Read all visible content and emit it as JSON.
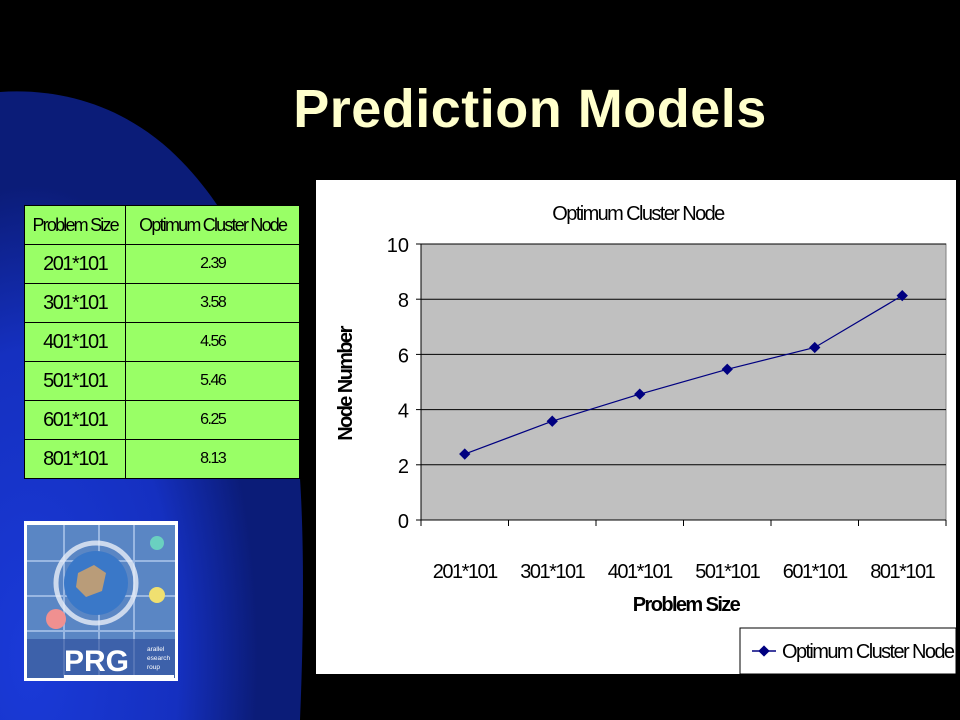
{
  "slide": {
    "title": "Prediction Models"
  },
  "table": {
    "headers": [
      "Problem Size",
      "Optimum Cluster Node"
    ],
    "rows": [
      [
        "201*101",
        "2.39"
      ],
      [
        "301*101",
        "3.58"
      ],
      [
        "401*101",
        "4.56"
      ],
      [
        "501*101",
        "5.46"
      ],
      [
        "601*101",
        "6.25"
      ],
      [
        "801*101",
        "8.13"
      ]
    ]
  },
  "logo": {
    "text": "PRG",
    "subtext": [
      "arallel",
      "esearch",
      "roup"
    ]
  },
  "colors": {
    "background": "#000000",
    "accent_blue": "#1133cc",
    "title": "#ffffcc",
    "table_fill": "#99ff66",
    "plot_area": "#c0c0c0",
    "series": "#000080"
  },
  "chart_data": {
    "type": "line",
    "title": "Optimum Cluster Node",
    "xlabel": "Problem Size",
    "ylabel": "Node Number",
    "categories": [
      "201*101",
      "301*101",
      "401*101",
      "501*101",
      "601*101",
      "801*101"
    ],
    "series": [
      {
        "name": "Optimum Cluster Node",
        "values": [
          2.39,
          3.58,
          4.56,
          5.46,
          6.25,
          8.13
        ]
      }
    ],
    "ylim": [
      0,
      10
    ],
    "yticks": [
      "0",
      "2",
      "4",
      "6",
      "8",
      "10"
    ],
    "grid": true,
    "legend": "bottom-right"
  }
}
